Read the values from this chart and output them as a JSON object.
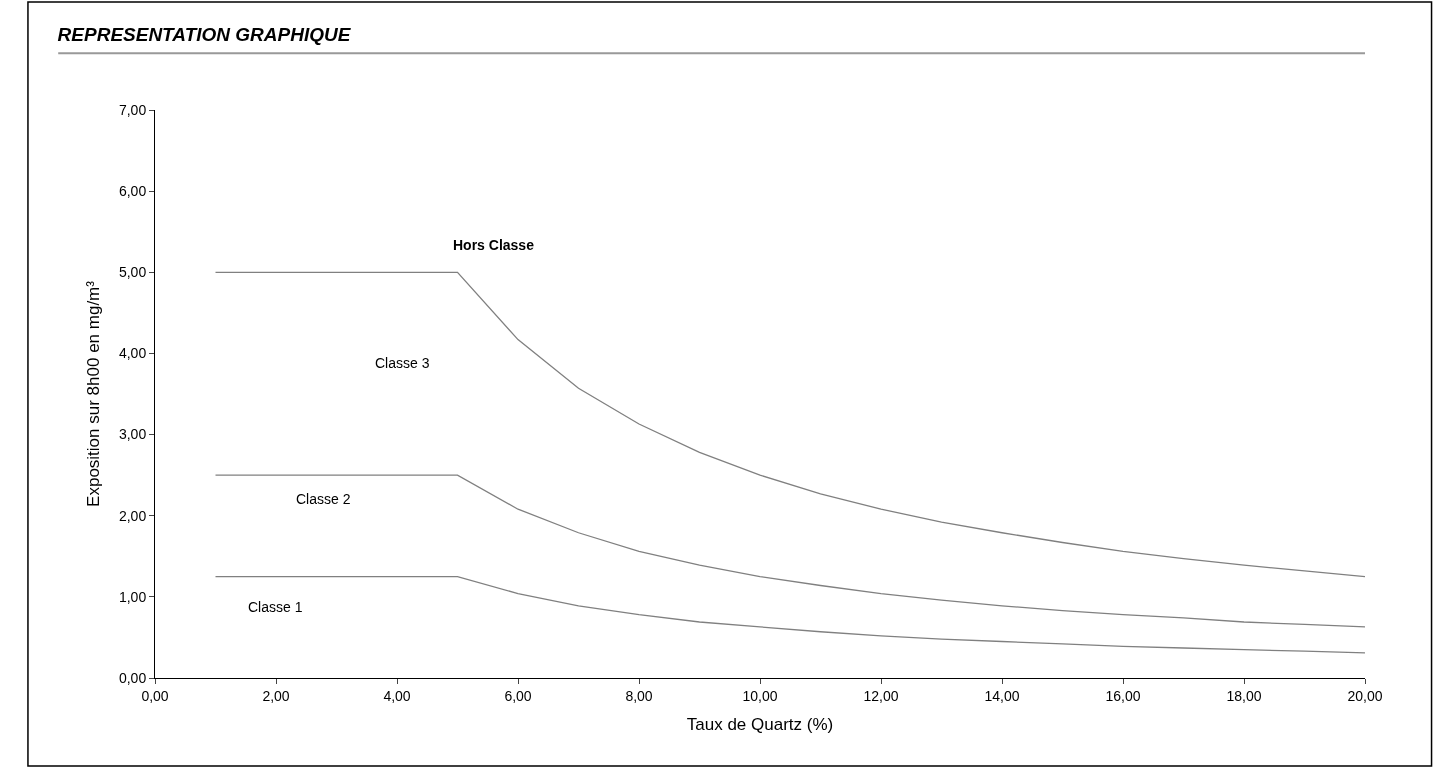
{
  "chart_data": {
    "type": "line",
    "title": "REPRESENTATION GRAPHIQUE",
    "xlabel": "Taux de Quartz (%)",
    "ylabel": "Exposition sur 8h00 en mg/m³",
    "x": [
      1,
      2,
      3,
      4,
      5,
      6,
      7,
      8,
      9,
      10,
      11,
      12,
      13,
      14,
      15,
      16,
      17,
      18,
      19,
      20
    ],
    "series": [
      {
        "color": "#808080",
        "values": [
          5,
          5,
          5,
          5,
          5,
          4.17,
          3.57,
          3.13,
          2.78,
          2.5,
          2.27,
          2.08,
          1.92,
          1.79,
          1.67,
          1.56,
          1.47,
          1.39,
          1.32,
          1.25
        ]
      },
      {
        "color": "#808080",
        "values": [
          2.5,
          2.5,
          2.5,
          2.5,
          2.5,
          2.08,
          1.79,
          1.56,
          1.39,
          1.25,
          1.14,
          1.04,
          0.96,
          0.89,
          0.83,
          0.78,
          0.74,
          0.69,
          0.66,
          0.63
        ]
      },
      {
        "color": "#808080",
        "values": [
          1.25,
          1.25,
          1.25,
          1.25,
          1.25,
          1.04,
          0.89,
          0.78,
          0.69,
          0.63,
          0.57,
          0.52,
          0.48,
          0.45,
          0.42,
          0.39,
          0.37,
          0.35,
          0.33,
          0.31
        ]
      }
    ],
    "xlim": [
      0,
      20
    ],
    "ylim": [
      0,
      7
    ],
    "xticks": [
      {
        "value": 0,
        "label": "0,00"
      },
      {
        "value": 2,
        "label": "2,00"
      },
      {
        "value": 4,
        "label": "4,00"
      },
      {
        "value": 6,
        "label": "6,00"
      },
      {
        "value": 8,
        "label": "8,00"
      },
      {
        "value": 10,
        "label": "10,00"
      },
      {
        "value": 12,
        "label": "12,00"
      },
      {
        "value": 14,
        "label": "14,00"
      },
      {
        "value": 16,
        "label": "16,00"
      },
      {
        "value": 18,
        "label": "18,00"
      },
      {
        "value": 20,
        "label": "20,00"
      }
    ],
    "yticks": [
      {
        "value": 0,
        "label": "0,00"
      },
      {
        "value": 1,
        "label": "1,00"
      },
      {
        "value": 2,
        "label": "2,00"
      },
      {
        "value": 3,
        "label": "3,00"
      },
      {
        "value": 4,
        "label": "4,00"
      },
      {
        "value": 5,
        "label": "5,00"
      },
      {
        "value": 6,
        "label": "6,00"
      },
      {
        "value": 7,
        "label": "7,00"
      }
    ],
    "annotations": [
      "Hors Classe",
      "Classe 3",
      "Classe 2",
      "Classe 1"
    ],
    "marker": "none",
    "line_style": "solid"
  }
}
